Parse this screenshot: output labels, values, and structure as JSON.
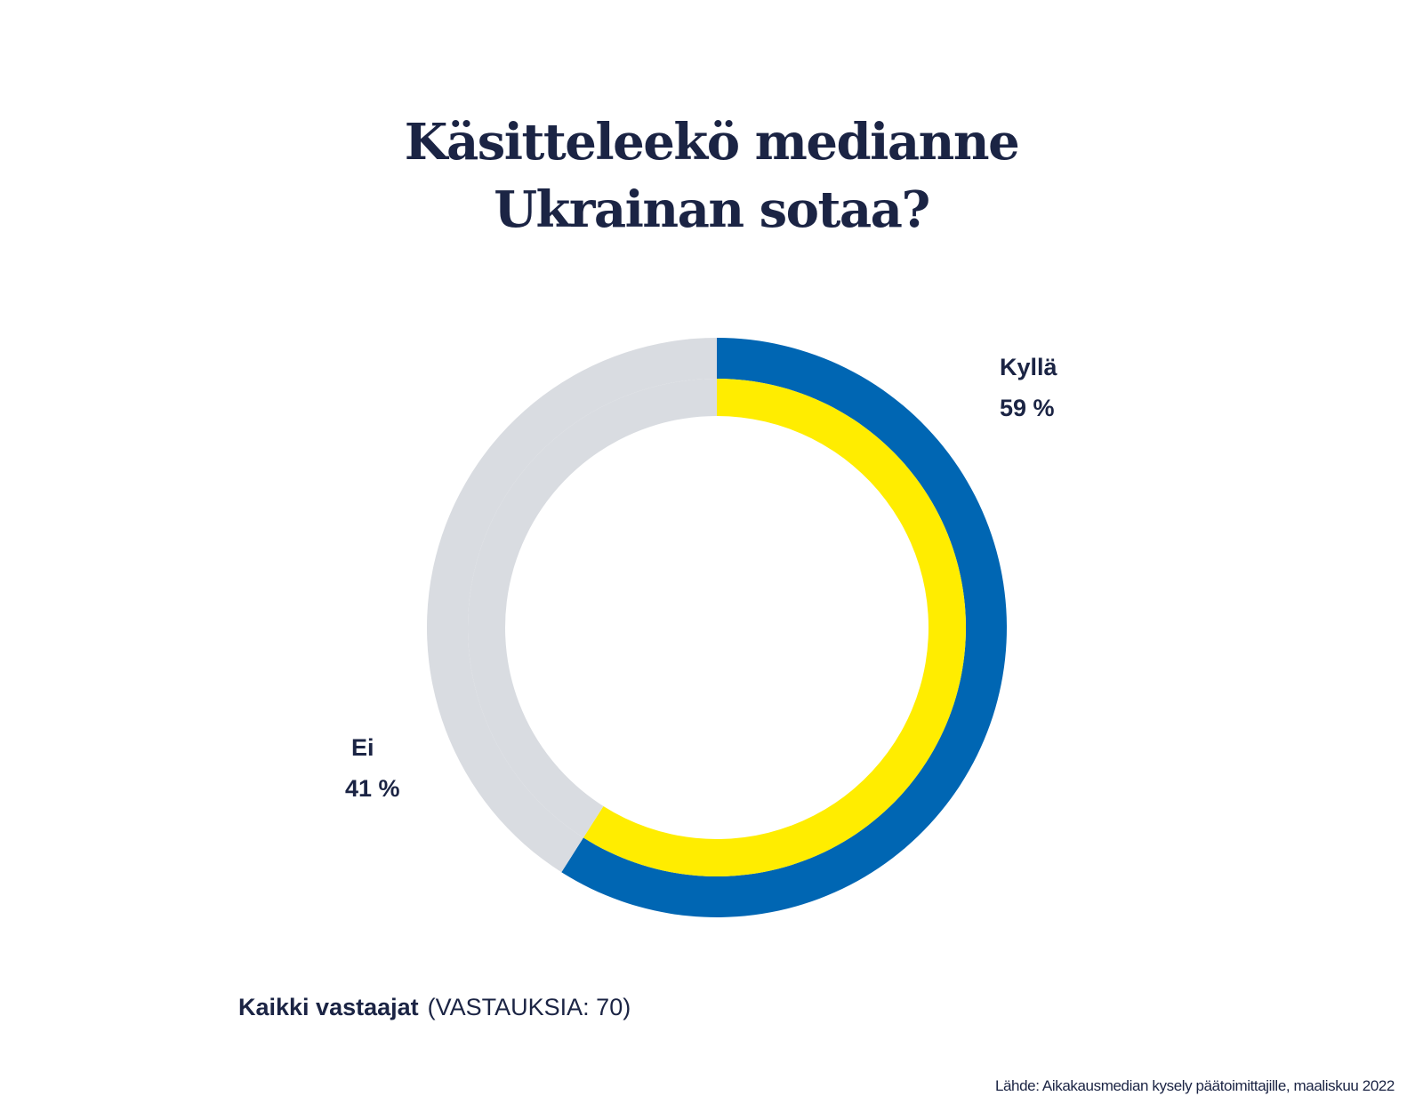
{
  "chart_data": {
    "type": "pie",
    "title_lines": [
      "Käsitteleekö medianne",
      "Ukrainan sotaa?"
    ],
    "slices": [
      {
        "label": "Kyllä",
        "value": 59,
        "value_label": "59 %",
        "colors": {
          "outer": "#0066b3",
          "inner": "#ffed00"
        }
      },
      {
        "label": "Ei",
        "value": 41,
        "value_label": "41 %",
        "colors": {
          "outer": "#d9dce1",
          "inner": "#d9dce1"
        }
      }
    ],
    "legend": "direct-labels",
    "group_label": "Kaikki vastaajat",
    "responses_note": "(VASTAUKSIA: 70)",
    "source": "Lähde: Aikakausmedian kysely päätoimittajille, maaliskuu 2022"
  }
}
